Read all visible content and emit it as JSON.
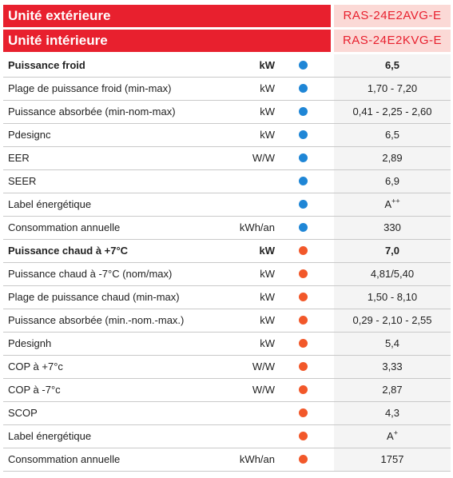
{
  "header": {
    "rows": [
      {
        "label": "Unité extérieure",
        "model": "RAS-24E2AVG-E"
      },
      {
        "label": "Unité intérieure",
        "model": "RAS-24E2KVG-E"
      }
    ]
  },
  "sections": [
    {
      "dot_color": "#1f86d6",
      "rows": [
        {
          "label": "Puissance froid",
          "unit": "kW",
          "value": "6,5",
          "bold": true
        },
        {
          "label": "Plage de puissance froid (min-max)",
          "unit": "kW",
          "value": "1,70 - 7,20"
        },
        {
          "label": "Puissance absorbée (min-nom-max)",
          "unit": "kW",
          "value": "0,41 - 2,25 - 2,60"
        },
        {
          "label": "Pdesignc",
          "unit": "kW",
          "value": "6,5"
        },
        {
          "label": "EER",
          "unit": "W/W",
          "value": "2,89"
        },
        {
          "label": "SEER",
          "value": "6,9"
        },
        {
          "label": "Label énergétique",
          "value": {
            "text": "A",
            "sup": "++"
          }
        },
        {
          "label": "Consommation annuelle",
          "unit": "kWh/an",
          "value": "330"
        }
      ]
    },
    {
      "dot_color": "#f2582a",
      "rows": [
        {
          "label": "Puissance chaud à +7°C",
          "unit": "kW",
          "value": "7,0",
          "bold": true
        },
        {
          "label": "Puissance chaud à -7°C (nom/max)",
          "unit": "kW",
          "value": "4,81/5,40"
        },
        {
          "label": "Plage de puissance chaud (min-max)",
          "unit": "kW",
          "value": "1,50 - 8,10"
        },
        {
          "label": "Puissance absorbée (min.-nom.-max.)",
          "unit": "kW",
          "value": "0,29 - 2,10 - 2,55"
        },
        {
          "label": "Pdesignh",
          "unit": "kW",
          "value": "5,4"
        },
        {
          "label": "COP à +7°c",
          "unit": "W/W",
          "value": "3,33"
        },
        {
          "label": "COP à -7°c",
          "unit": "W/W",
          "value": "2,87"
        },
        {
          "label": "SCOP",
          "value": "4,3"
        },
        {
          "label": "Label énergétique",
          "value": {
            "text": "A",
            "sup": "+"
          }
        },
        {
          "label": "Consommation annuelle",
          "unit": "kWh/an",
          "value": "1757"
        }
      ]
    }
  ]
}
